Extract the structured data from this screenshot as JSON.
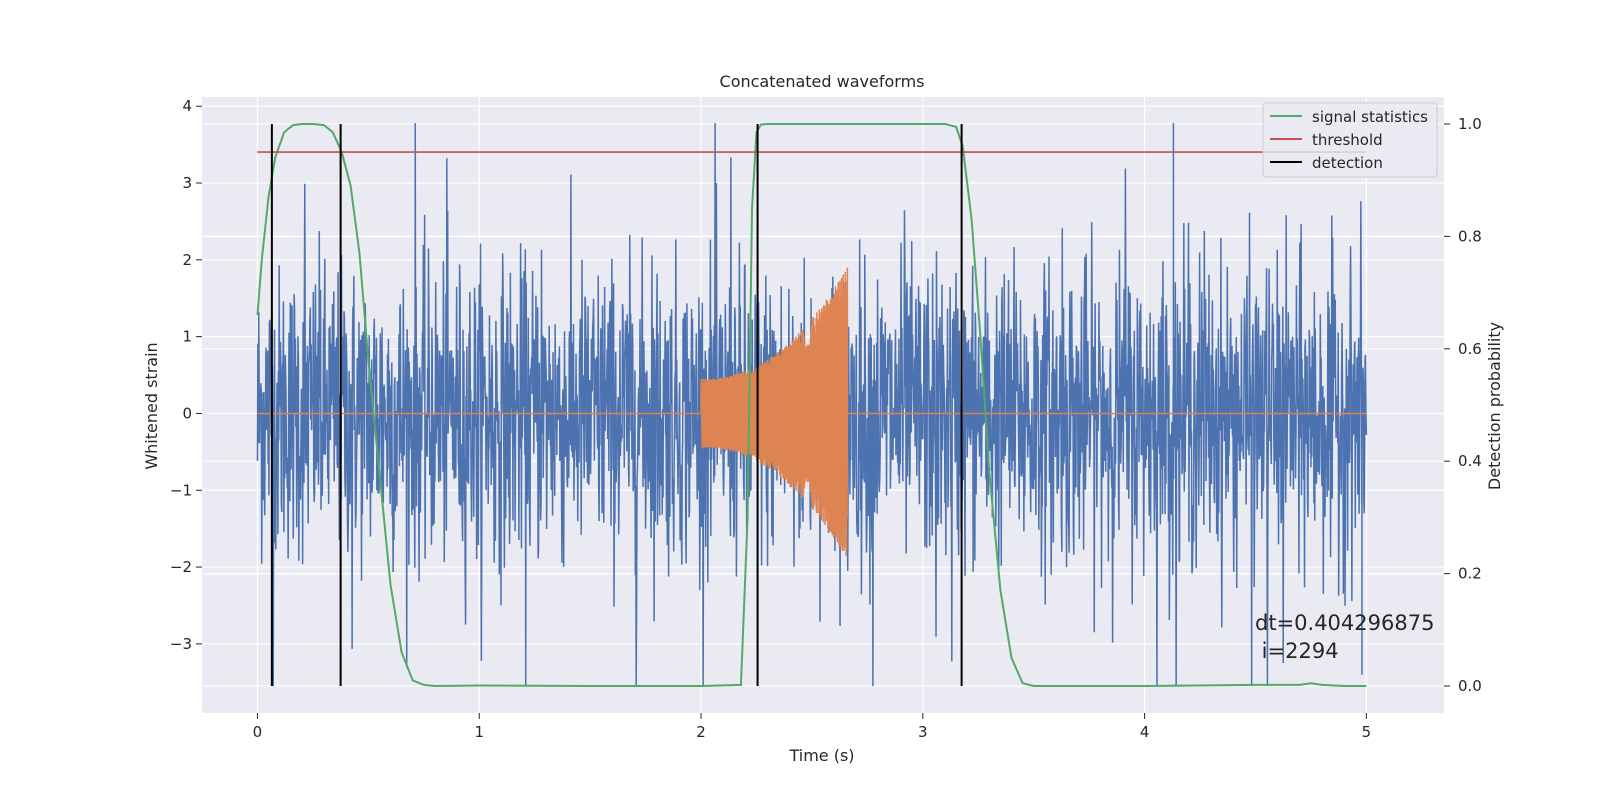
{
  "chart_data": {
    "type": "line",
    "title": "Concatenated waveforms",
    "xlabel": "Time (s)",
    "ylabel_left": "Whitened strain",
    "ylabel_right": "Detection probability",
    "xlim": [
      -0.25,
      5.35
    ],
    "ylim_left": [
      -3.9,
      4.12
    ],
    "ylim_right": [
      -0.048,
      1.048
    ],
    "x_ticks": [
      0,
      1,
      2,
      3,
      4,
      5
    ],
    "x_tick_labels": [
      "0",
      "1",
      "2",
      "3",
      "4",
      "5"
    ],
    "y_left_ticks": [
      -3,
      -2,
      -1,
      0,
      1,
      2,
      3,
      4
    ],
    "y_left_tick_labels": [
      "−3",
      "−2",
      "−1",
      "0",
      "1",
      "2",
      "3",
      "4"
    ],
    "y_right_ticks": [
      0.0,
      0.2,
      0.4,
      0.6,
      0.8,
      1.0
    ],
    "y_right_tick_labels": [
      "0.0",
      "0.2",
      "0.4",
      "0.6",
      "0.8",
      "1.0"
    ],
    "grid": true,
    "legend_position": "top-right",
    "legend": [
      "signal statistics",
      "threshold",
      "detection"
    ],
    "series": [
      {
        "name": "",
        "axis": "left",
        "color": "#4c72b0",
        "description_x_range": [
          0,
          5
        ],
        "approx_peak_amplitude": 2.5,
        "max_value": 3.78,
        "min_value": -3.55
      },
      {
        "name": "",
        "axis": "left",
        "color": "#dd8452",
        "chirp_x_range": [
          2.0,
          2.66
        ],
        "start_amplitude": 0.45,
        "end_amplitude": 1.9
      },
      {
        "name": "signal statistics",
        "axis": "right",
        "color": "#55a868",
        "x": [
          0.0,
          0.02,
          0.05,
          0.08,
          0.12,
          0.16,
          0.2,
          0.25,
          0.3,
          0.34,
          0.38,
          0.42,
          0.46,
          0.5,
          0.55,
          0.6,
          0.65,
          0.7,
          0.75,
          0.8,
          1.0,
          1.5,
          2.0,
          2.18,
          2.21,
          2.23,
          2.25,
          2.27,
          2.3,
          2.4,
          2.8,
          3.0,
          3.1,
          3.15,
          3.18,
          3.22,
          3.26,
          3.3,
          3.35,
          3.4,
          3.45,
          3.5,
          4.0,
          4.5,
          4.7,
          4.75,
          4.8,
          4.9,
          5.0
        ],
        "y": [
          0.66,
          0.76,
          0.87,
          0.94,
          0.985,
          0.998,
          1.0,
          1.0,
          0.998,
          0.985,
          0.95,
          0.89,
          0.77,
          0.58,
          0.38,
          0.18,
          0.06,
          0.01,
          0.002,
          0.0,
          0.001,
          0.0,
          0.0,
          0.002,
          0.3,
          0.85,
          0.985,
          0.999,
          1.0,
          1.0,
          1.0,
          1.0,
          1.0,
          0.995,
          0.96,
          0.83,
          0.62,
          0.38,
          0.17,
          0.05,
          0.005,
          0.0,
          0.0,
          0.002,
          0.002,
          0.005,
          0.002,
          0.0,
          0.0
        ]
      },
      {
        "name": "threshold",
        "axis": "right",
        "color": "#c44e52",
        "x": [
          0,
          5
        ],
        "y": [
          0.95,
          0.95
        ]
      },
      {
        "name": "detection",
        "axis": "right",
        "color": "#000000",
        "x_positions": [
          0.065,
          0.375,
          2.255,
          3.175
        ],
        "y_range": [
          0.0,
          1.0
        ]
      }
    ],
    "annotations": [
      "dt=0.404296875",
      " i=2294"
    ]
  }
}
